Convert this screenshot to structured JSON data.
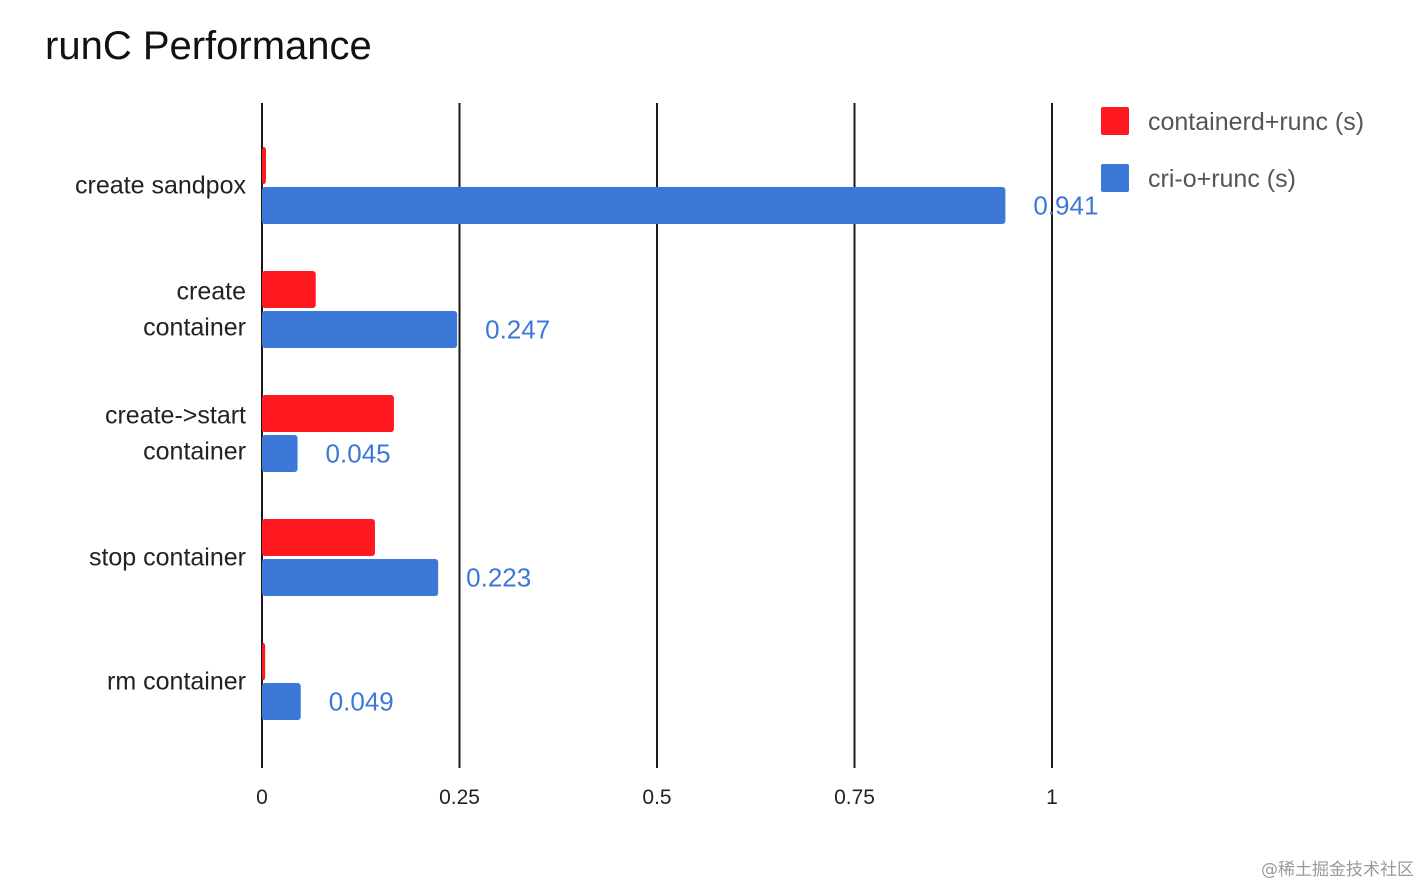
{
  "chart_data": {
    "type": "bar",
    "orientation": "horizontal",
    "title": "runC Performance",
    "categories": [
      [
        "create sandpox"
      ],
      [
        "create",
        "container"
      ],
      [
        "create->start",
        "container"
      ],
      [
        "stop container"
      ],
      [
        "rm container"
      ]
    ],
    "series": [
      {
        "name": "containerd+runc (s)",
        "color": "#ff1820",
        "values": [
          0.005,
          0.068,
          0.167,
          0.143,
          0.004
        ]
      },
      {
        "name": "cri-o+runc (s)",
        "color": "#3c78d8",
        "values": [
          0.941,
          0.247,
          0.045,
          0.223,
          0.049
        ]
      }
    ],
    "data_labels": [
      {
        "series": 1,
        "labels": [
          "0.941",
          "0.247",
          "0.045",
          "0.223",
          "0.049"
        ],
        "color": "#3c78d8"
      }
    ],
    "xlim": [
      0,
      1
    ],
    "xticks": [
      "0",
      "0.25",
      "0.5",
      "0.75",
      "1"
    ],
    "xlabel": "",
    "ylabel": "",
    "grid": true,
    "legend_position": "top-right"
  },
  "watermark": "@稀土掘金技术社区"
}
